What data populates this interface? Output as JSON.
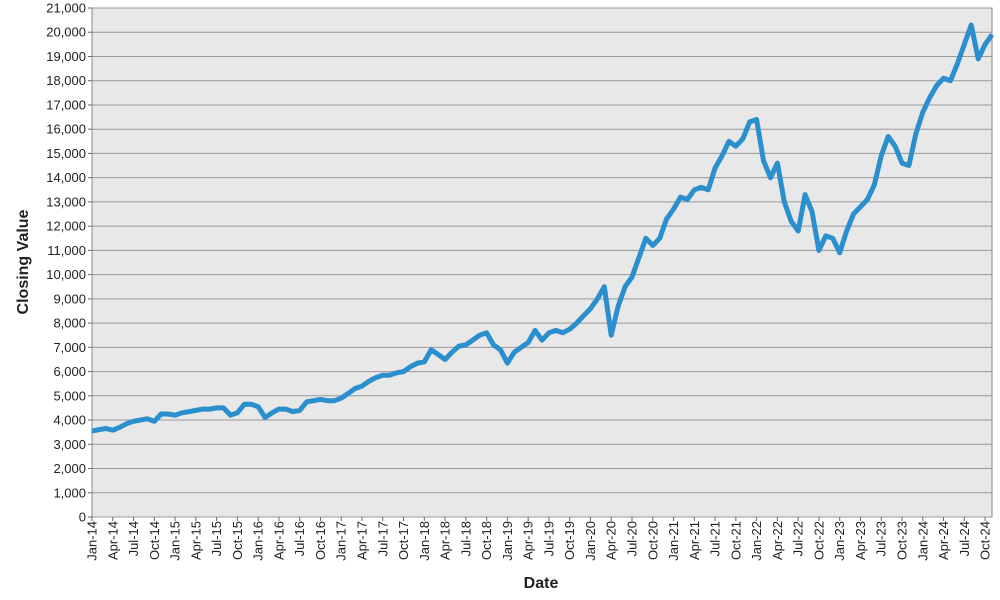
{
  "chart_data": {
    "type": "line",
    "y_label": "Closing Value",
    "x_label": "Date",
    "categories": [
      "Jan-14",
      null,
      null,
      "Apr-14",
      null,
      null,
      "Jul-14",
      null,
      null,
      "Oct-14",
      null,
      null,
      "Jan-15",
      null,
      null,
      "Apr-15",
      null,
      null,
      "Jul-15",
      null,
      null,
      "Oct-15",
      null,
      null,
      "Jan-16",
      null,
      null,
      "Apr-16",
      null,
      null,
      "Jul-16",
      null,
      null,
      "Oct-16",
      null,
      null,
      "Jan-17",
      null,
      null,
      "Apr-17",
      null,
      null,
      "Jul-17",
      null,
      null,
      "Oct-17",
      null,
      null,
      "Jan-18",
      null,
      null,
      "Apr-18",
      null,
      null,
      "Jul-18",
      null,
      null,
      "Oct-18",
      null,
      null,
      "Jan-19",
      null,
      null,
      "Apr-19",
      null,
      null,
      "Jul-19",
      null,
      null,
      "Oct-19",
      null,
      null,
      "Jan-20",
      null,
      null,
      "Apr-20",
      null,
      null,
      "Jul-20",
      null,
      null,
      "Oct-20",
      null,
      null,
      "Jan-21",
      null,
      null,
      "Apr-21",
      null,
      null,
      "Jul-21",
      null,
      null,
      "Oct-21",
      null,
      null,
      "Jan-22",
      null,
      null,
      "Apr-22",
      null,
      null,
      "Jul-22",
      null,
      null,
      "Oct-22",
      null,
      null,
      "Jan-23",
      null,
      null,
      "Apr-23",
      null,
      null,
      "Jul-23",
      null,
      null,
      "Oct-23",
      null,
      null,
      "Jan-24",
      null,
      null,
      "Apr-24",
      null,
      null,
      "Jul-24",
      null,
      null,
      "Oct-24",
      null
    ],
    "values": [
      3550,
      3600,
      3650,
      3580,
      3700,
      3850,
      3950,
      4000,
      4050,
      3950,
      4250,
      4250,
      4200,
      4300,
      4350,
      4400,
      4450,
      4450,
      4500,
      4500,
      4200,
      4300,
      4650,
      4650,
      4550,
      4100,
      4300,
      4450,
      4450,
      4350,
      4400,
      4750,
      4800,
      4850,
      4800,
      4800,
      4900,
      5100,
      5300,
      5400,
      5600,
      5750,
      5850,
      5850,
      5950,
      6000,
      6200,
      6350,
      6400,
      6900,
      6700,
      6500,
      6800,
      7050,
      7100,
      7300,
      7500,
      7600,
      7100,
      6900,
      6350,
      6800,
      7000,
      7200,
      7700,
      7300,
      7600,
      7700,
      7600,
      7750,
      8000,
      8300,
      8600,
      9000,
      9500,
      7500,
      8700,
      9500,
      9900,
      10700,
      11500,
      11200,
      11500,
      12300,
      12700,
      13200,
      13100,
      13500,
      13600,
      13500,
      14400,
      14900,
      15500,
      15300,
      15600,
      16300,
      16400,
      14700,
      14000,
      14600,
      13000,
      12200,
      11800,
      13300,
      12600,
      11000,
      11600,
      11500,
      10900,
      11800,
      12500,
      12800,
      13100,
      13700,
      14900,
      15700,
      15300,
      14600,
      14500,
      15800,
      16700,
      17300,
      17800,
      18100,
      18000,
      18700,
      19500,
      20300,
      18900,
      19500,
      19900
    ],
    "color": "#2a8fcc",
    "ylim": [
      0,
      21000
    ],
    "yticks": [
      0,
      {
        "value": 1000,
        "label": "1,000"
      },
      {
        "value": 2000,
        "label": "2,000"
      },
      {
        "value": 3000,
        "label": "3,000"
      },
      {
        "value": 4000,
        "label": "4,000"
      },
      {
        "value": 5000,
        "label": "5,000"
      },
      {
        "value": 6000,
        "label": "6,000"
      },
      {
        "value": 7000,
        "label": "7,000"
      },
      {
        "value": 8000,
        "label": "8,000"
      },
      {
        "value": 9000,
        "label": "9,000"
      },
      {
        "value": 10000,
        "label": "10,000"
      },
      {
        "value": 11000,
        "label": "11,000"
      },
      {
        "value": 12000,
        "label": "12,000"
      },
      {
        "value": 13000,
        "label": "13,000"
      },
      {
        "value": 14000,
        "label": "14,000"
      },
      {
        "value": 15000,
        "label": "15,000"
      },
      {
        "value": 16000,
        "label": "16,000"
      },
      {
        "value": 17000,
        "label": "17,000"
      },
      {
        "value": 18000,
        "label": "18,000"
      },
      {
        "value": 19000,
        "label": "19,000"
      },
      {
        "value": 20000,
        "label": "20,000"
      },
      {
        "value": 21000,
        "label": "21,000"
      }
    ],
    "grid": true
  }
}
